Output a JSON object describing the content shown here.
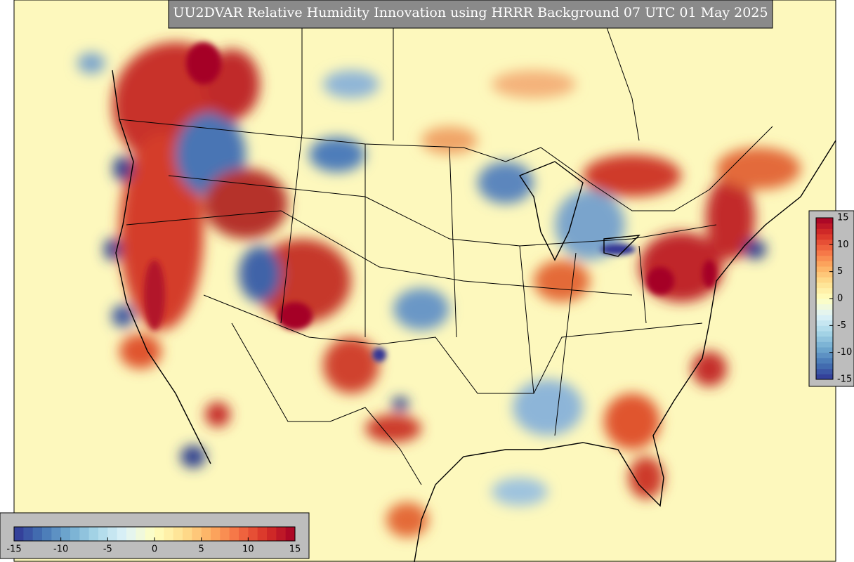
{
  "title": "UU2DVAR Relative Humidity Innovation using HRRR Background 07 UTC 01 May 2025",
  "colorbar_vertical": {
    "range": [
      -15,
      15
    ],
    "ticks": [
      15,
      10,
      5,
      0,
      -5,
      -10,
      -15
    ]
  },
  "colorbar_horizontal": {
    "range": [
      -15,
      15
    ],
    "ticks": [
      -15,
      -10,
      -5,
      0,
      5,
      10,
      15
    ]
  }
}
